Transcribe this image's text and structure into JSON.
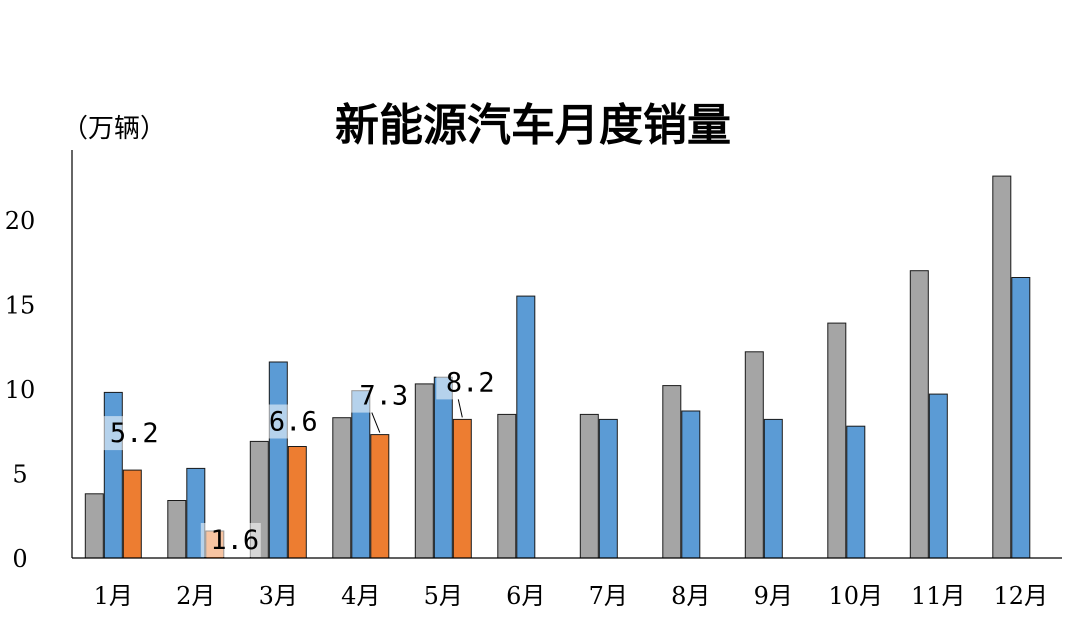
{
  "chart_data": {
    "type": "bar",
    "title": "新能源汽车月度销量",
    "ylabel": "（万辆）",
    "xlabel": "",
    "ylim": [
      0,
      23
    ],
    "yticks": [
      "0",
      "5",
      "10",
      "15",
      "20"
    ],
    "categories": [
      "1月",
      "2月",
      "3月",
      "4月",
      "5月",
      "6月",
      "7月",
      "8月",
      "9月",
      "10月",
      "11月",
      "12月"
    ],
    "series": [
      {
        "color": "#A5A5A5",
        "values": [
          3.8,
          3.4,
          6.9,
          8.3,
          10.3,
          8.5,
          8.5,
          10.2,
          12.2,
          13.9,
          17.0,
          22.6
        ]
      },
      {
        "color": "#5B9BD5",
        "values": [
          9.8,
          5.3,
          11.6,
          9.9,
          10.7,
          15.5,
          8.2,
          8.7,
          8.2,
          7.8,
          9.7,
          16.6
        ]
      },
      {
        "color": "#ED7D31",
        "values": [
          5.2,
          1.6,
          6.6,
          7.3,
          8.2,
          null,
          null,
          null,
          null,
          null,
          null,
          null
        ]
      }
    ],
    "data_labels": [
      "5.2",
      "1.6",
      "6.6",
      "7.3",
      "8.2"
    ],
    "grid": false,
    "legend": "none"
  }
}
